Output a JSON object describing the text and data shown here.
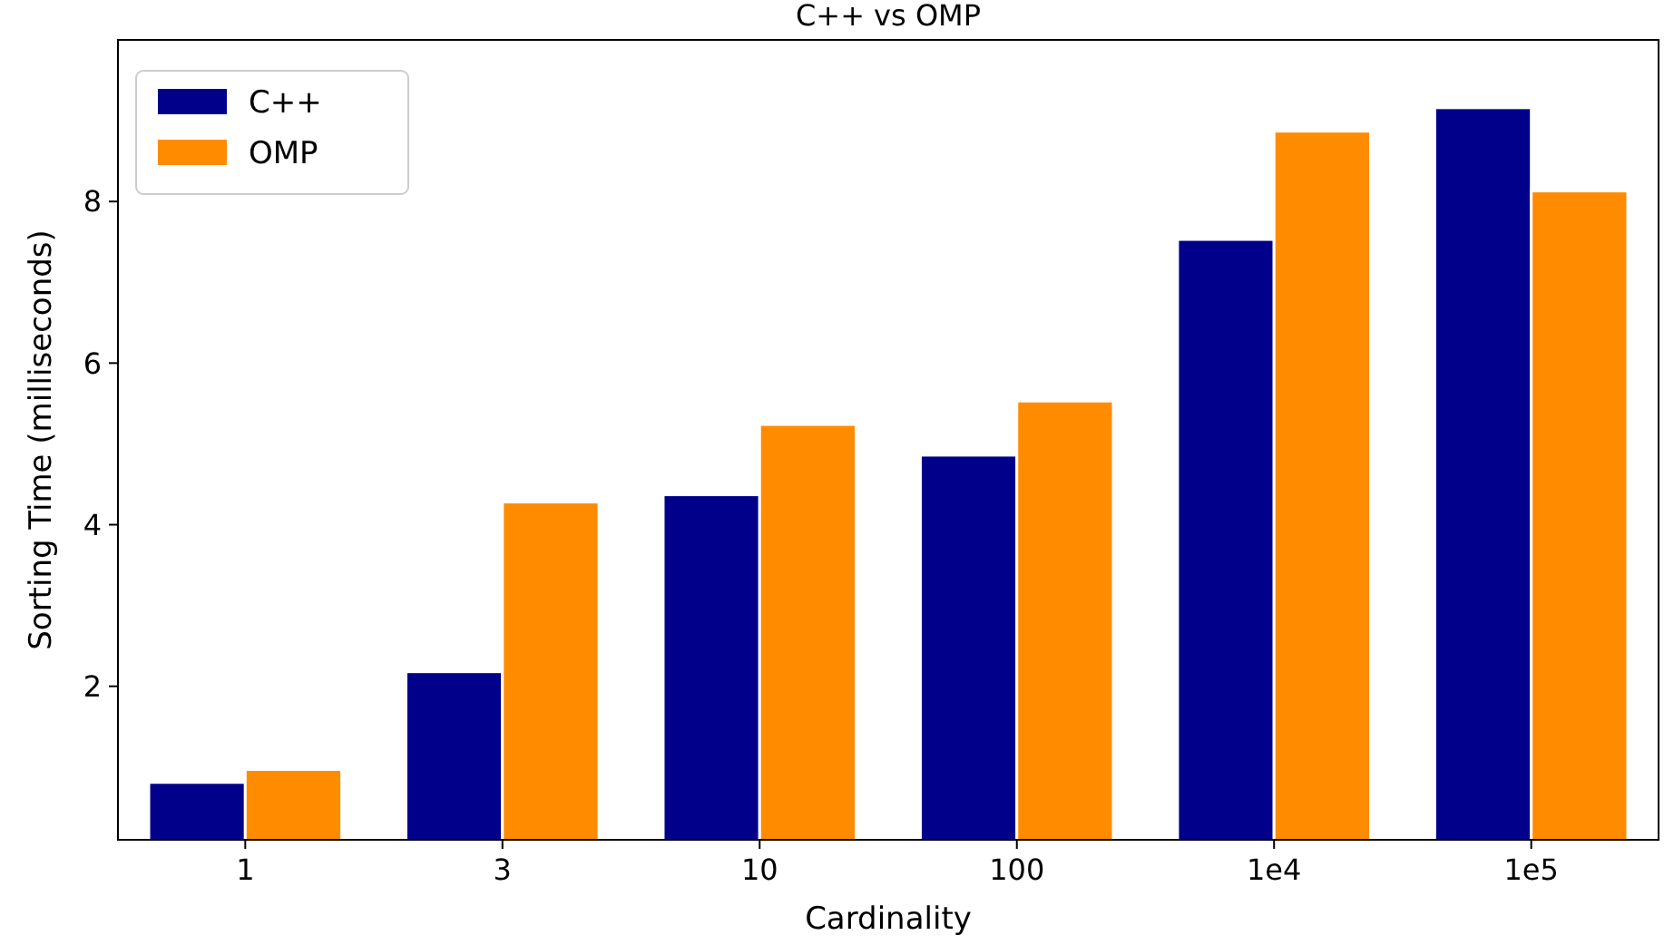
{
  "chart_data": {
    "type": "bar",
    "title": "C++ vs OMP",
    "xlabel": "Cardinality",
    "ylabel": "Sorting Time (milliseconds)",
    "categories": [
      "1",
      "3",
      "10",
      "100",
      "1e4",
      "1e5"
    ],
    "series": [
      {
        "name": "C++",
        "color": "#00008b",
        "values": [
          0.81,
          2.18,
          4.37,
          4.86,
          7.53,
          9.16
        ]
      },
      {
        "name": "OMP",
        "color": "#ff8c00",
        "values": [
          0.97,
          4.28,
          5.24,
          5.53,
          8.87,
          8.13
        ]
      }
    ],
    "ylim": [
      0.1,
      10
    ],
    "yticks": [
      2,
      4,
      6,
      8
    ],
    "grid": false,
    "legend": "top left"
  }
}
